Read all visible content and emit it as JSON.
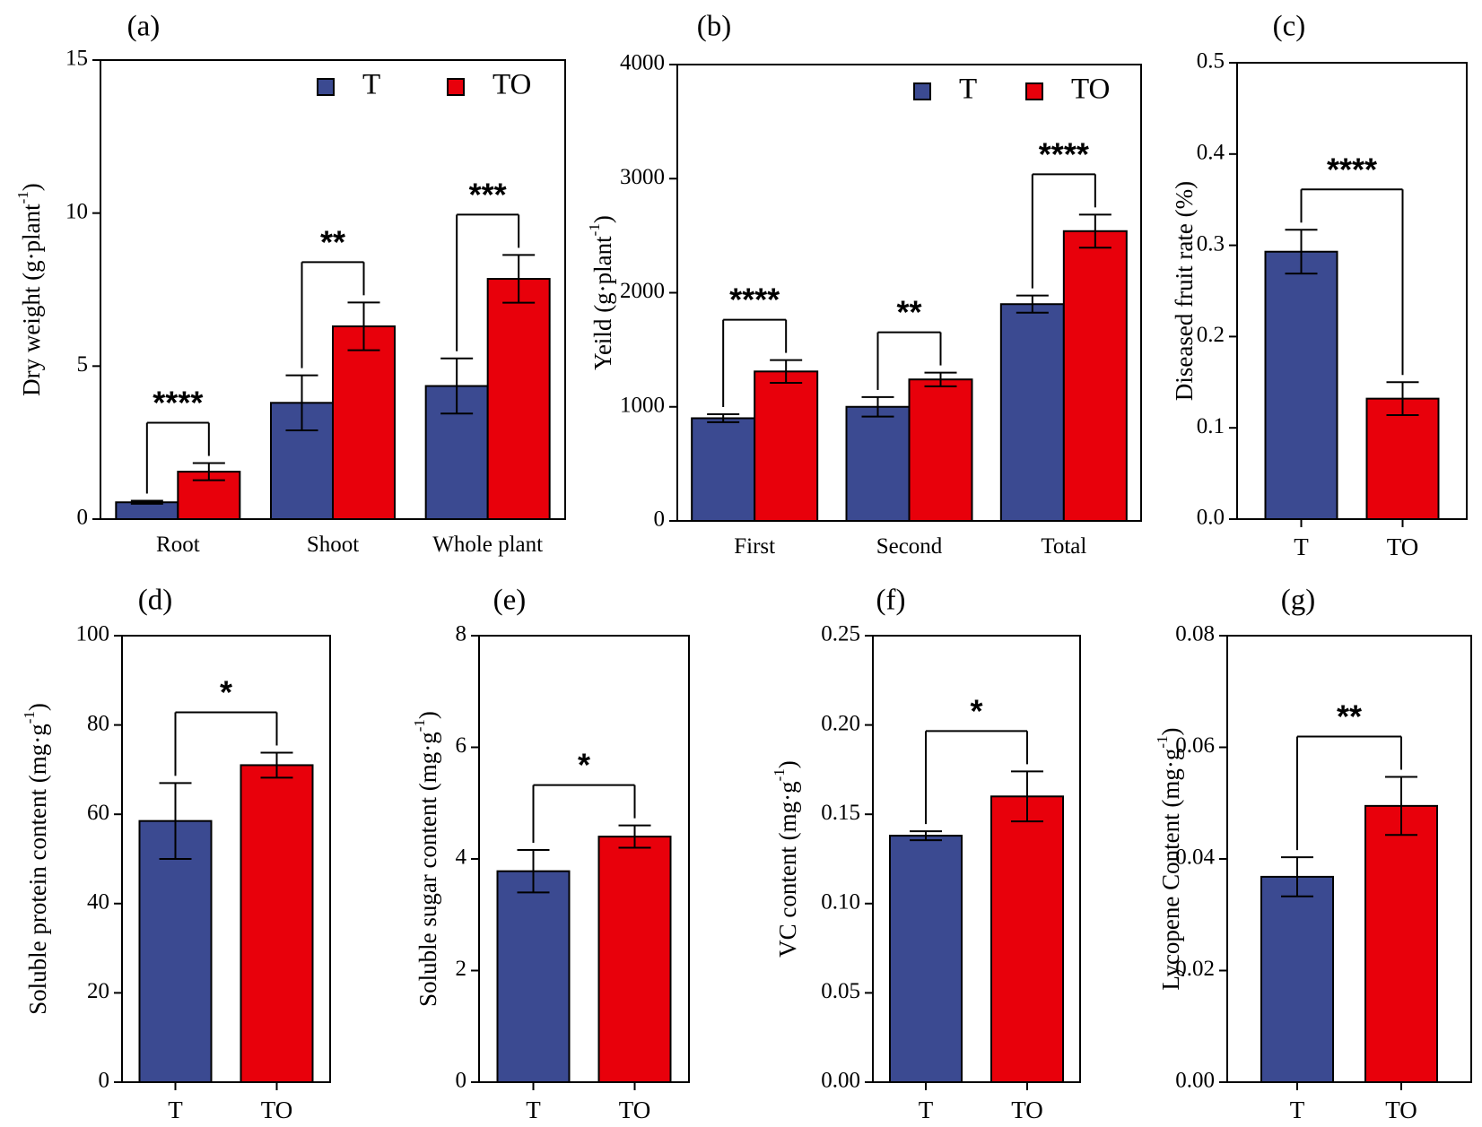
{
  "legend": {
    "items": [
      {
        "label": "T",
        "color": "#3b4a91"
      },
      {
        "label": "TO",
        "color": "#e8000b"
      }
    ]
  },
  "chart_data": [
    {
      "id": "a",
      "type": "bar",
      "title": "(a)",
      "ylabel": "Dry weight (g·plant",
      "ylabel_sup": "-1",
      "ylabel_end": ")",
      "ylim": [
        0,
        15
      ],
      "yticks": [
        "0",
        "5",
        "10",
        "15"
      ],
      "ytick_values": [
        0,
        5,
        10,
        15
      ],
      "categories": [
        "Root",
        "Shoot",
        "Whole plant"
      ],
      "series": [
        {
          "name": "T",
          "color": "#3b4a91",
          "values": [
            0.55,
            3.8,
            4.35
          ],
          "errors": [
            0.05,
            0.9,
            0.9
          ]
        },
        {
          "name": "TO",
          "color": "#e8000b",
          "values": [
            1.55,
            6.3,
            7.85
          ],
          "errors": [
            0.28,
            0.78,
            0.78
          ]
        }
      ],
      "significance": [
        "****",
        "**",
        "***"
      ],
      "legend_position": "top-right"
    },
    {
      "id": "b",
      "type": "bar",
      "title": "(b)",
      "ylabel": "Yeild (g·plant",
      "ylabel_sup": "-1",
      "ylabel_end": ")",
      "ylim": [
        0,
        4000
      ],
      "yticks": [
        "0",
        "1000",
        "2000",
        "3000",
        "4000"
      ],
      "ytick_values": [
        0,
        1000,
        2000,
        3000,
        4000
      ],
      "categories": [
        "First",
        "Second",
        "Total"
      ],
      "series": [
        {
          "name": "T",
          "color": "#3b4a91",
          "values": [
            900,
            1000,
            1900
          ],
          "errors": [
            35,
            85,
            75
          ]
        },
        {
          "name": "TO",
          "color": "#e8000b",
          "values": [
            1310,
            1240,
            2540
          ],
          "errors": [
            100,
            60,
            145
          ]
        }
      ],
      "significance": [
        "****",
        "**",
        "****"
      ],
      "legend_position": "top-right"
    },
    {
      "id": "c",
      "type": "bar",
      "title": "(c)",
      "ylabel": "Diseased fruit rate (%)",
      "ylim": [
        0,
        0.5
      ],
      "yticks": [
        "0.0",
        "0.1",
        "0.2",
        "0.3",
        "0.4",
        "0.5"
      ],
      "ytick_values": [
        0,
        0.1,
        0.2,
        0.3,
        0.4,
        0.5
      ],
      "categories": [
        "T",
        "TO"
      ],
      "values": [
        0.293,
        0.132
      ],
      "errors": [
        0.024,
        0.018
      ],
      "significance": "****"
    },
    {
      "id": "d",
      "type": "bar",
      "title": "(d)",
      "ylabel": "Soluble protein content (mg·g",
      "ylabel_sup": "-1",
      "ylabel_end": ")",
      "ylim": [
        0,
        100
      ],
      "yticks": [
        "0",
        "20",
        "40",
        "60",
        "80",
        "100"
      ],
      "ytick_values": [
        0,
        20,
        40,
        60,
        80,
        100
      ],
      "categories": [
        "T",
        "TO"
      ],
      "values": [
        58.5,
        71.0
      ],
      "errors": [
        8.5,
        2.8
      ],
      "significance": "*"
    },
    {
      "id": "e",
      "type": "bar",
      "title": "(e)",
      "ylabel": "Soluble sugar content (mg·g",
      "ylabel_sup": "-1",
      "ylabel_end": ")",
      "ylim": [
        0,
        8
      ],
      "yticks": [
        "0",
        "2",
        "4",
        "6",
        "8"
      ],
      "ytick_values": [
        0,
        2,
        4,
        6,
        8
      ],
      "categories": [
        "T",
        "TO"
      ],
      "values": [
        3.78,
        4.4
      ],
      "errors": [
        0.38,
        0.2
      ],
      "significance": "*"
    },
    {
      "id": "f",
      "type": "bar",
      "title": "(f)",
      "ylabel": "VC content (mg·g",
      "ylabel_sup": "-1",
      "ylabel_end": ")",
      "ylim": [
        0,
        0.25
      ],
      "yticks": [
        "0.00",
        "0.05",
        "0.10",
        "0.15",
        "0.20",
        "0.25"
      ],
      "ytick_values": [
        0,
        0.05,
        0.1,
        0.15,
        0.2,
        0.25
      ],
      "categories": [
        "T",
        "TO"
      ],
      "values": [
        0.138,
        0.16
      ],
      "errors": [
        0.0025,
        0.014
      ],
      "significance": "*"
    },
    {
      "id": "g",
      "type": "bar",
      "title": "(g)",
      "ylabel": "Lycopene Content (mg·g",
      "ylabel_sup": "-1",
      "ylabel_end": ")",
      "ylim": [
        0,
        0.08
      ],
      "yticks": [
        "0.00",
        "0.02",
        "0.04",
        "0.06",
        "0.08"
      ],
      "ytick_values": [
        0,
        0.02,
        0.04,
        0.06,
        0.08
      ],
      "categories": [
        "T",
        "TO"
      ],
      "values": [
        0.0368,
        0.0495
      ],
      "errors": [
        0.0035,
        0.0052
      ],
      "significance": "**"
    }
  ]
}
